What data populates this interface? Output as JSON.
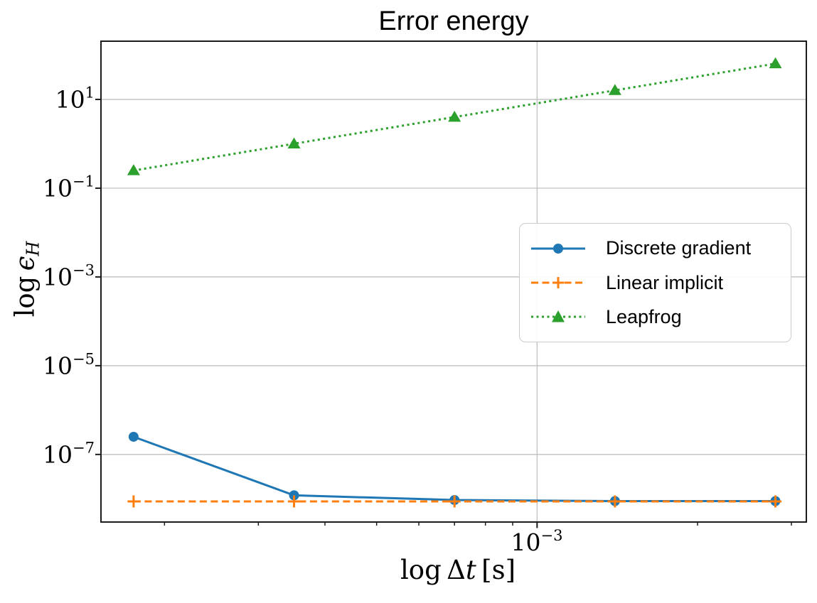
{
  "chart_data": {
    "type": "line",
    "title": "Error energy",
    "xlabel": "log Δt [s]",
    "ylabel": "log ϵ_H",
    "xscale": "log",
    "yscale": "log",
    "grid": true,
    "xlim": [
      0.000152,
      0.0032
    ],
    "ylim": [
      3e-09,
      205
    ],
    "x": [
      0.000175,
      0.00035,
      0.0007,
      0.0014,
      0.0028
    ],
    "series": [
      {
        "name": "Discrete gradient",
        "color": "#1f77b4",
        "linestyle": "solid",
        "marker": "circle",
        "values": [
          2.5e-07,
          1.2e-08,
          9.4e-09,
          8.9e-09,
          8.9e-09
        ]
      },
      {
        "name": "Linear implicit",
        "color": "#ff7f0e",
        "linestyle": "dashed",
        "marker": "plus",
        "values": [
          8.75e-09,
          8.75e-09,
          8.75e-09,
          8.75e-09,
          8.75e-09
        ]
      },
      {
        "name": "Leapfrog",
        "color": "#2ca02c",
        "linestyle": "dotted",
        "marker": "triangle-up",
        "values": [
          0.25,
          1.0,
          4.0,
          16.0,
          64.0
        ]
      }
    ],
    "x_major_tick_exponents": [
      -3
    ],
    "y_major_tick_exponents": [
      1,
      -1,
      -3,
      -5,
      -7
    ],
    "legend_position": "center right"
  },
  "labels": {
    "xlabel_log": "log",
    "xlabel_delta": "Δ",
    "xlabel_var": "t",
    "xlabel_unit": "[s]",
    "ylabel_log": "log",
    "ylabel_var": "ϵ",
    "ylabel_sub": "H",
    "tick_base": "10"
  },
  "style": {
    "grid_color": "#bababa",
    "spine_color": "#1c1c1c",
    "tick_color": "#1c1c1c",
    "legend_border": "#cccccc"
  }
}
